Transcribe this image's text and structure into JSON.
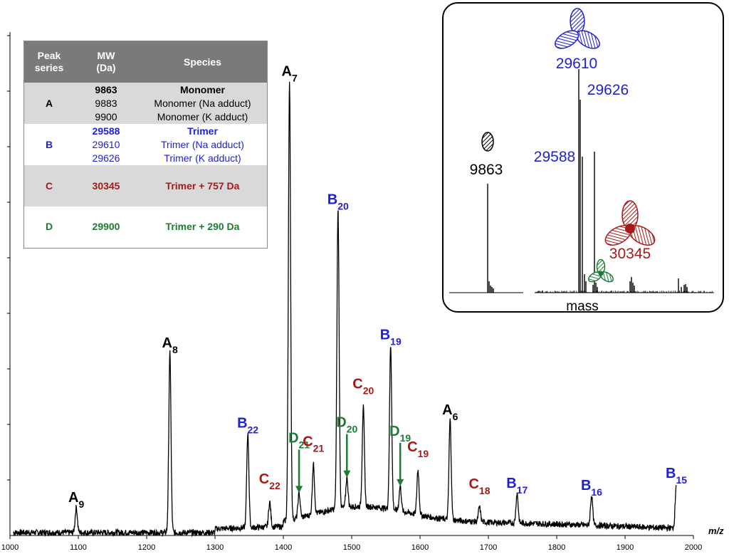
{
  "chart_data": {
    "type": "line",
    "title": "",
    "xlabel": "m/z",
    "ylabel": "",
    "xlim": [
      1000,
      2000
    ],
    "x_ticks": [
      "1000",
      "1100",
      "1200",
      "1300",
      "1400",
      "1500",
      "1600",
      "1700",
      "1800",
      "1900",
      "2000"
    ],
    "peaks": [
      {
        "label": "A",
        "sub": "9",
        "x": 1097,
        "h": 0.05,
        "color": "#000000"
      },
      {
        "label": "A",
        "sub": "8",
        "x": 1234,
        "h": 0.36,
        "color": "#000000"
      },
      {
        "label": "B",
        "sub": "22",
        "x": 1348,
        "h": 0.19,
        "color": "#1f1fd6"
      },
      {
        "label": "C",
        "sub": "22",
        "x": 1380,
        "h": 0.05,
        "color": "#a81818"
      },
      {
        "label": "A",
        "sub": "7",
        "x": 1409,
        "h": 0.88,
        "color": "#000000"
      },
      {
        "label": "D",
        "sub": "21",
        "x": 1423,
        "h": 0.05,
        "color": "#1e7b34"
      },
      {
        "label": "C",
        "sub": "21",
        "x": 1444,
        "h": 0.1,
        "color": "#a81818"
      },
      {
        "label": "B",
        "sub": "20",
        "x": 1480,
        "h": 0.6,
        "color": "#1f1fd6"
      },
      {
        "label": "D",
        "sub": "20",
        "x": 1493,
        "h": 0.06,
        "color": "#1e7b34"
      },
      {
        "label": "C",
        "sub": "20",
        "x": 1517,
        "h": 0.2,
        "color": "#a81818"
      },
      {
        "label": "B",
        "sub": "19",
        "x": 1557,
        "h": 0.33,
        "color": "#1f1fd6"
      },
      {
        "label": "D",
        "sub": "19",
        "x": 1571,
        "h": 0.05,
        "color": "#1e7b34"
      },
      {
        "label": "C",
        "sub": "19",
        "x": 1597,
        "h": 0.09,
        "color": "#a81818"
      },
      {
        "label": "A",
        "sub": "6",
        "x": 1644,
        "h": 0.2,
        "color": "#000000"
      },
      {
        "label": "C",
        "sub": "18",
        "x": 1687,
        "h": 0.03,
        "color": "#a81818"
      },
      {
        "label": "B",
        "sub": "17",
        "x": 1742,
        "h": 0.06,
        "color": "#1f1fd6"
      },
      {
        "label": "B",
        "sub": "16",
        "x": 1851,
        "h": 0.06,
        "color": "#1f1fd6"
      },
      {
        "label": "B",
        "sub": "15",
        "x": 1975,
        "h": 0.09,
        "color": "#1f1fd6"
      }
    ]
  },
  "table": {
    "headers": [
      "Peak\nseries",
      "MW\n(Da)",
      "Species"
    ],
    "rows": [
      {
        "series": "A",
        "mw": [
          "9863",
          "9883",
          "9900"
        ],
        "species": [
          "Monomer",
          "Monomer (Na adduct)",
          "Monomer (K adduct)"
        ],
        "color": "black"
      },
      {
        "series": "B",
        "mw": [
          "29588",
          "29610",
          "29626"
        ],
        "species": [
          "Trimer",
          "Trimer (Na adduct)",
          "Trimer (K adduct)"
        ],
        "color": "blue"
      },
      {
        "series": "C",
        "mw": [
          "30345"
        ],
        "species": [
          "Trimer + 757 Da"
        ],
        "color": "red"
      },
      {
        "series": "D",
        "mw": [
          "29900"
        ],
        "species": [
          "Trimer + 290 Da"
        ],
        "color": "green"
      }
    ]
  },
  "inset": {
    "xlabel": "mass",
    "labels": {
      "monomer": "9863",
      "trimer_na": "29610",
      "trimer_k": "29626",
      "trimer": "29588",
      "trimer_757": "30345"
    }
  },
  "colors": {
    "A": "#000000",
    "B": "#1f1fd6",
    "C": "#a81818",
    "D": "#1e7b34"
  }
}
